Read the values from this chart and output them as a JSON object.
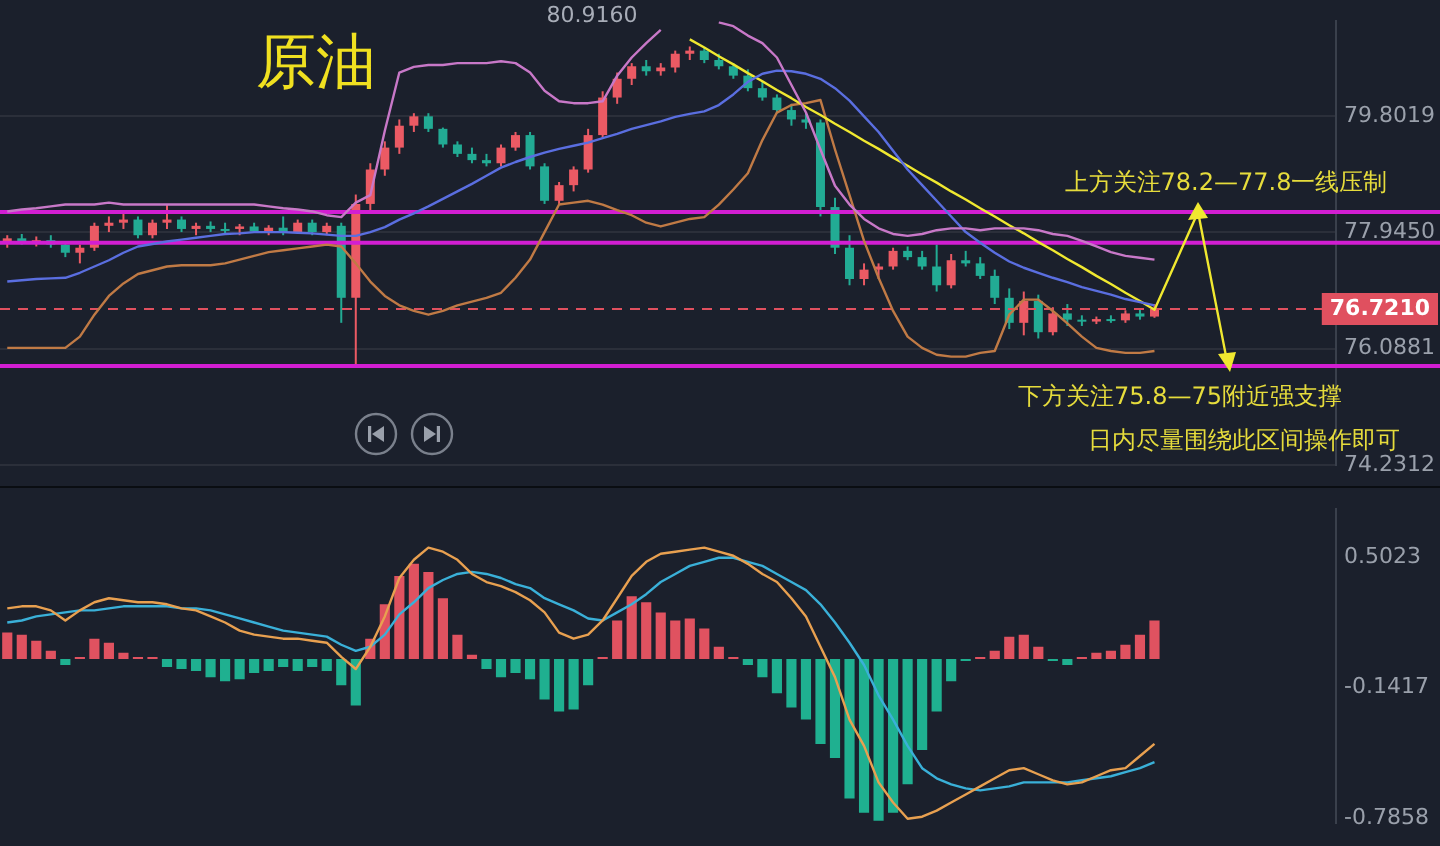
{
  "chart_data": [
    {
      "type": "candlestick",
      "title": "原油",
      "categories": [
        null,
        null,
        null,
        null,
        null,
        null,
        null,
        null,
        null,
        null,
        null,
        null,
        null,
        null,
        null,
        null,
        null,
        null,
        null,
        null,
        null,
        null,
        null,
        null,
        null,
        null,
        null,
        null,
        null,
        null,
        null,
        null,
        null,
        null,
        null,
        null,
        null,
        null,
        null,
        null,
        null,
        null,
        null,
        null,
        null,
        null,
        null,
        null,
        null,
        null,
        null,
        null,
        null,
        null,
        null,
        null,
        null,
        null,
        null,
        null,
        null,
        null,
        null,
        null,
        null,
        null,
        null,
        null,
        null,
        null,
        null,
        null,
        null,
        null,
        null,
        null,
        null,
        null,
        null,
        null,
        null,
        null,
        null,
        null,
        null,
        null,
        null,
        null,
        null,
        null,
        null,
        null
      ],
      "ohlc": [
        [
          77.8,
          77.9,
          77.7,
          77.85
        ],
        [
          77.85,
          77.92,
          77.75,
          77.78
        ],
        [
          77.78,
          77.88,
          77.72,
          77.82
        ],
        [
          77.82,
          77.9,
          77.7,
          77.75
        ],
        [
          77.75,
          77.8,
          77.55,
          77.62
        ],
        [
          77.62,
          77.75,
          77.45,
          77.7
        ],
        [
          77.7,
          78.1,
          77.65,
          78.05
        ],
        [
          78.05,
          78.2,
          77.95,
          78.1
        ],
        [
          78.1,
          78.25,
          78.0,
          78.15
        ],
        [
          78.15,
          78.2,
          77.85,
          77.9
        ],
        [
          77.9,
          78.15,
          77.85,
          78.1
        ],
        [
          78.1,
          78.4,
          78.0,
          78.15
        ],
        [
          78.15,
          78.2,
          77.95,
          78.0
        ],
        [
          78.0,
          78.1,
          77.9,
          78.05
        ],
        [
          78.05,
          78.12,
          77.95,
          78.0
        ],
        [
          78.0,
          78.1,
          77.92,
          77.98
        ],
        [
          78.0,
          78.08,
          77.9,
          78.04
        ],
        [
          78.04,
          78.1,
          77.95,
          77.96
        ],
        [
          77.96,
          78.06,
          77.9,
          78.02
        ],
        [
          78.02,
          78.2,
          77.9,
          77.95
        ],
        [
          77.95,
          78.15,
          77.92,
          78.1
        ],
        [
          78.1,
          78.15,
          77.9,
          77.95
        ],
        [
          77.95,
          78.1,
          77.9,
          78.05
        ],
        [
          78.05,
          78.1,
          76.5,
          76.9
        ],
        [
          76.9,
          78.55,
          75.84,
          78.4
        ],
        [
          78.4,
          79.05,
          78.3,
          78.95
        ],
        [
          78.95,
          79.4,
          78.85,
          79.3
        ],
        [
          79.3,
          79.75,
          79.2,
          79.65
        ],
        [
          79.65,
          79.85,
          79.55,
          79.8
        ],
        [
          79.8,
          79.85,
          79.55,
          79.6
        ],
        [
          79.6,
          79.62,
          79.3,
          79.35
        ],
        [
          79.35,
          79.4,
          79.15,
          79.2
        ],
        [
          79.2,
          79.3,
          79.05,
          79.1
        ],
        [
          79.1,
          79.2,
          79.0,
          79.05
        ],
        [
          79.05,
          79.35,
          79.0,
          79.3
        ],
        [
          79.3,
          79.55,
          79.25,
          79.5
        ],
        [
          79.5,
          79.55,
          78.95,
          79.0
        ],
        [
          79.0,
          79.05,
          78.4,
          78.45
        ],
        [
          78.45,
          78.75,
          78.4,
          78.7
        ],
        [
          78.7,
          79.0,
          78.6,
          78.95
        ],
        [
          78.95,
          79.6,
          78.9,
          79.5
        ],
        [
          79.5,
          80.2,
          79.45,
          80.1
        ],
        [
          80.1,
          80.5,
          80.0,
          80.4
        ],
        [
          80.4,
          80.65,
          80.3,
          80.6
        ],
        [
          80.6,
          80.7,
          80.45,
          80.52
        ],
        [
          80.52,
          80.65,
          80.45,
          80.58
        ],
        [
          80.58,
          80.85,
          80.5,
          80.8
        ],
        [
          80.8,
          80.916,
          80.7,
          80.85
        ],
        [
          80.85,
          80.9,
          80.65,
          80.7
        ],
        [
          80.7,
          80.8,
          80.55,
          80.6
        ],
        [
          80.6,
          80.65,
          80.4,
          80.45
        ],
        [
          80.45,
          80.55,
          80.2,
          80.25
        ],
        [
          80.25,
          80.35,
          80.05,
          80.1
        ],
        [
          80.1,
          80.15,
          79.85,
          79.9
        ],
        [
          79.9,
          80.0,
          79.65,
          79.75
        ],
        [
          79.75,
          79.85,
          79.6,
          79.7
        ],
        [
          79.7,
          79.75,
          78.2,
          78.35
        ],
        [
          78.35,
          78.5,
          77.6,
          77.7
        ],
        [
          77.7,
          77.9,
          77.1,
          77.2
        ],
        [
          77.2,
          77.45,
          77.1,
          77.35
        ],
        [
          77.35,
          77.45,
          77.2,
          77.4
        ],
        [
          77.4,
          77.7,
          77.35,
          77.65
        ],
        [
          77.65,
          77.72,
          77.5,
          77.55
        ],
        [
          77.55,
          77.65,
          77.35,
          77.4
        ],
        [
          77.4,
          77.75,
          77.0,
          77.1
        ],
        [
          77.1,
          77.6,
          77.05,
          77.5
        ],
        [
          77.5,
          77.65,
          77.4,
          77.45
        ],
        [
          77.45,
          77.55,
          77.2,
          77.25
        ],
        [
          77.25,
          77.35,
          76.8,
          76.9
        ],
        [
          76.9,
          77.05,
          76.4,
          76.5
        ],
        [
          76.5,
          77.0,
          76.3,
          76.85
        ],
        [
          76.85,
          76.95,
          76.25,
          76.35
        ],
        [
          76.35,
          76.75,
          76.3,
          76.65
        ],
        [
          76.65,
          76.8,
          76.45,
          76.55
        ],
        [
          76.55,
          76.62,
          76.45,
          76.52
        ],
        [
          76.52,
          76.6,
          76.48,
          76.56
        ],
        [
          76.56,
          76.62,
          76.5,
          76.54
        ],
        [
          76.54,
          76.7,
          76.5,
          76.65
        ],
        [
          76.65,
          76.72,
          76.55,
          76.6
        ],
        [
          76.6,
          76.8,
          76.58,
          76.721
        ],
        null,
        null,
        null,
        null,
        null,
        null,
        null,
        null,
        null,
        null,
        null,
        null
      ],
      "colors": [
        "#eb5a64",
        "#22ab94",
        "#eb5a64",
        "#22ab94",
        "#22ab94",
        "#eb5a64",
        "#eb5a64",
        "#eb5a64",
        "#eb5a64",
        "#22ab94",
        "#eb5a64",
        "#eb5a64",
        "#22ab94",
        "#eb5a64",
        "#22ab94",
        "#22ab94",
        "#eb5a64",
        "#22ab94",
        "#eb5a64",
        "#22ab94",
        "#eb5a64",
        "#22ab94",
        "#eb5a64",
        "#22ab94",
        "#eb5a64",
        "#eb5a64",
        "#eb5a64",
        "#eb5a64",
        "#eb5a64",
        "#22ab94",
        "#22ab94",
        "#22ab94",
        "#22ab94",
        "#22ab94",
        "#eb5a64",
        "#eb5a64",
        "#22ab94",
        "#22ab94",
        "#eb5a64",
        "#eb5a64",
        "#eb5a64",
        "#eb5a64",
        "#eb5a64",
        "#eb5a64",
        "#22ab94",
        "#eb5a64",
        "#eb5a64",
        "#eb5a64",
        "#22ab94",
        "#22ab94",
        "#22ab94",
        "#22ab94",
        "#22ab94",
        "#22ab94",
        "#22ab94",
        "#22ab94",
        "#22ab94",
        "#22ab94",
        "#22ab94",
        "#eb5a64",
        "#eb5a64",
        "#eb5a64",
        "#22ab94",
        "#22ab94",
        "#22ab94",
        "#eb5a64",
        "#22ab94",
        "#22ab94",
        "#22ab94",
        "#22ab94",
        "#eb5a64",
        "#22ab94",
        "#eb5a64",
        "#22ab94",
        "#22ab94",
        "#eb5a64",
        "#22ab94",
        "#eb5a64",
        "#22ab94",
        "#eb5a64",
        null,
        null,
        null,
        null,
        null,
        null,
        null,
        null,
        null,
        null,
        null,
        null
      ],
      "series": [
        {
          "type": "line",
          "color": "#c878c8",
          "values": [
            78.28,
            78.31,
            78.33,
            78.36,
            78.39,
            78.39,
            78.39,
            78.42,
            78.39,
            78.39,
            78.39,
            78.39,
            78.39,
            78.39,
            78.39,
            78.39,
            78.39,
            78.39,
            78.36,
            78.33,
            78.31,
            78.28,
            78.22,
            78.19,
            78.42,
            78.54,
            79.57,
            80.5,
            80.59,
            80.62,
            80.62,
            80.65,
            80.65,
            80.65,
            80.68,
            80.65,
            80.5,
            80.21,
            80.04,
            80.01,
            80.01,
            80.04,
            80.45,
            80.74,
            80.97,
            81.18,
            null,
            null,
            null,
            81.3,
            81.24,
            81.09,
            80.97,
            80.74,
            80.3,
            79.86,
            79.27,
            78.69,
            78.39,
            78.16,
            78.01,
            77.92,
            77.89,
            77.92,
            77.98,
            78.01,
            78.01,
            77.98,
            78.01,
            78.01,
            78.01,
            77.98,
            77.92,
            77.89,
            77.81,
            77.72,
            77.63,
            77.57,
            77.54,
            77.51,
            null,
            null,
            null,
            null,
            null,
            null,
            null,
            null,
            null,
            null,
            null,
            null
          ]
        },
        {
          "type": "line",
          "color": "#5a6ee0",
          "values": [
            77.16,
            77.18,
            77.2,
            77.21,
            77.22,
            77.3,
            77.4,
            77.5,
            77.62,
            77.72,
            77.76,
            77.8,
            77.83,
            77.86,
            77.89,
            77.92,
            77.93,
            77.95,
            77.95,
            77.95,
            77.94,
            77.93,
            77.91,
            77.89,
            77.89,
            77.95,
            78.03,
            78.15,
            78.25,
            78.36,
            78.48,
            78.6,
            78.72,
            78.85,
            78.98,
            79.07,
            79.15,
            79.22,
            79.28,
            79.33,
            79.38,
            79.45,
            79.52,
            79.6,
            79.66,
            79.72,
            79.79,
            79.84,
            79.88,
            79.98,
            80.15,
            80.35,
            80.48,
            80.53,
            80.52,
            80.48,
            80.4,
            80.25,
            80.05,
            79.8,
            79.55,
            79.25,
            78.95,
            78.7,
            78.45,
            78.2,
            77.95,
            77.78,
            77.62,
            77.48,
            77.38,
            77.3,
            77.22,
            77.15,
            77.07,
            77.01,
            76.95,
            76.88,
            76.83,
            76.78,
            null,
            null,
            null,
            null,
            null,
            null,
            null,
            null,
            null,
            null,
            null,
            null
          ]
        },
        {
          "type": "line",
          "color": "#f0e830",
          "values": [
            null,
            null,
            null,
            null,
            null,
            null,
            null,
            null,
            null,
            null,
            null,
            null,
            null,
            null,
            null,
            null,
            null,
            null,
            null,
            null,
            null,
            null,
            null,
            null,
            null,
            null,
            null,
            null,
            null,
            null,
            null,
            null,
            null,
            null,
            null,
            null,
            null,
            null,
            null,
            null,
            null,
            null,
            null,
            null,
            null,
            null,
            null,
            81.03,
            80.9,
            80.76,
            80.63,
            80.49,
            80.36,
            80.22,
            80.09,
            79.95,
            79.82,
            79.68,
            79.55,
            79.41,
            79.28,
            79.14,
            79.01,
            78.87,
            78.74,
            78.6,
            78.47,
            78.33,
            78.2,
            78.06,
            77.93,
            77.79,
            77.66,
            77.52,
            77.39,
            77.25,
            77.12,
            76.98,
            76.85,
            76.71,
            null,
            null,
            78.27,
            null,
            75.88,
            null,
            null,
            null,
            null,
            null,
            null,
            null
          ]
        },
        {
          "type": "line",
          "color": "#c07a45",
          "values": [
            76.1,
            76.1,
            76.1,
            76.1,
            76.1,
            76.28,
            76.63,
            76.93,
            77.13,
            77.28,
            77.34,
            77.4,
            77.42,
            77.42,
            77.42,
            77.45,
            77.51,
            77.57,
            77.63,
            77.66,
            77.69,
            77.72,
            77.75,
            77.72,
            77.45,
            77.16,
            76.93,
            76.78,
            76.69,
            76.63,
            76.69,
            76.78,
            76.84,
            76.9,
            76.98,
            77.22,
            77.51,
            77.95,
            78.39,
            78.42,
            78.45,
            78.39,
            78.3,
            78.22,
            78.1,
            78.04,
            78.1,
            78.16,
            78.19,
            78.39,
            78.63,
            78.89,
            79.42,
            79.86,
            79.98,
            80.01,
            80.06,
            79.27,
            78.54,
            77.81,
            77.22,
            76.69,
            76.28,
            76.1,
            75.99,
            75.96,
            75.96,
            76.02,
            76.05,
            76.63,
            76.87,
            76.87,
            76.69,
            76.49,
            76.28,
            76.1,
            76.05,
            76.02,
            76.02,
            76.05,
            null,
            null,
            null,
            null,
            null,
            null,
            null,
            null,
            null,
            null,
            null,
            null
          ]
        }
      ],
      "ylim": [
        74.2312,
        81.32
      ],
      "yticks": [
        79.8019,
        {
          "value": 77.945,
          "label": "77.9450"
        },
        76.0881,
        74.2312
      ],
      "tick_labels": "y",
      "grid": "y",
      "marker": "none",
      "ref_lines": [
        {
          "axis": "y",
          "value": 78.27,
          "color": "#d21ed2"
        },
        {
          "axis": "y",
          "value": 77.78,
          "color": "#d21ed2"
        },
        {
          "axis": "y",
          "value": 75.81,
          "color": "#d21ed2"
        },
        {
          "axis": "y",
          "value": 76.721,
          "label": "76.7210",
          "color": "#e0505f",
          "line_style": "dashed"
        }
      ],
      "annotations": [
        "80.9160",
        "上方关注78.2—77.8一线压制",
        "下方关注75.8—75附近强支撑",
        "日内尽量围绕此区间操作即可"
      ]
    },
    {
      "type": "bar",
      "categories": [
        null,
        null,
        null,
        null,
        null,
        null,
        null,
        null,
        null,
        null,
        null,
        null,
        null,
        null,
        null,
        null,
        null,
        null,
        null,
        null,
        null,
        null,
        null,
        null,
        null,
        null,
        null,
        null,
        null,
        null,
        null,
        null,
        null,
        null,
        null,
        null,
        null,
        null,
        null,
        null,
        null,
        null,
        null,
        null,
        null,
        null,
        null,
        null,
        null,
        null,
        null,
        null,
        null,
        null,
        null,
        null,
        null,
        null,
        null,
        null,
        null,
        null,
        null,
        null,
        null,
        null,
        null,
        null,
        null,
        null,
        null,
        null,
        null,
        null,
        null,
        null,
        null,
        null,
        null,
        null,
        null,
        null,
        null,
        null,
        null,
        null,
        null,
        null,
        null,
        null,
        null,
        null
      ],
      "series": [
        {
          "type": "bar",
          "values": [
            0.13,
            0.12,
            0.09,
            0.04,
            -0.03,
            0.01,
            0.1,
            0.08,
            0.03,
            0.01,
            0.01,
            -0.04,
            -0.05,
            -0.06,
            -0.09,
            -0.11,
            -0.1,
            -0.07,
            -0.06,
            -0.04,
            -0.06,
            -0.04,
            -0.06,
            -0.13,
            -0.23,
            0.1,
            0.27,
            0.41,
            0.47,
            0.43,
            0.3,
            0.12,
            0.02,
            -0.05,
            -0.09,
            -0.07,
            -0.1,
            -0.2,
            -0.26,
            -0.25,
            -0.13,
            0.01,
            0.19,
            0.31,
            0.28,
            0.23,
            0.19,
            0.2,
            0.15,
            0.06,
            0.01,
            -0.03,
            -0.09,
            -0.17,
            -0.24,
            -0.3,
            -0.42,
            -0.49,
            -0.69,
            -0.76,
            -0.8,
            -0.76,
            -0.62,
            -0.45,
            -0.26,
            -0.11,
            -0.01,
            0.01,
            0.04,
            0.11,
            0.12,
            0.06,
            -0.01,
            -0.03,
            0.01,
            0.03,
            0.04,
            0.07,
            0.12,
            0.19,
            null,
            null,
            null,
            null,
            null,
            null,
            null,
            null,
            null,
            null,
            null,
            null
          ],
          "colors": [
            "#e05260",
            "#e05260",
            "#e05260",
            "#e05260",
            "#1fb090",
            "#e05260",
            "#e05260",
            "#e05260",
            "#e05260",
            "#e05260",
            "#e05260",
            "#1fb090",
            "#1fb090",
            "#1fb090",
            "#1fb090",
            "#1fb090",
            "#1fb090",
            "#1fb090",
            "#1fb090",
            "#1fb090",
            "#1fb090",
            "#1fb090",
            "#1fb090",
            "#1fb090",
            "#1fb090",
            "#e05260",
            "#e05260",
            "#e05260",
            "#e05260",
            "#e05260",
            "#e05260",
            "#e05260",
            "#e05260",
            "#1fb090",
            "#1fb090",
            "#1fb090",
            "#1fb090",
            "#1fb090",
            "#1fb090",
            "#1fb090",
            "#1fb090",
            "#e05260",
            "#e05260",
            "#e05260",
            "#e05260",
            "#e05260",
            "#e05260",
            "#e05260",
            "#e05260",
            "#e05260",
            "#e05260",
            "#1fb090",
            "#1fb090",
            "#1fb090",
            "#1fb090",
            "#1fb090",
            "#1fb090",
            "#1fb090",
            "#1fb090",
            "#1fb090",
            "#1fb090",
            "#1fb090",
            "#1fb090",
            "#1fb090",
            "#1fb090",
            "#1fb090",
            "#1fb090",
            "#e05260",
            "#e05260",
            "#e05260",
            "#e05260",
            "#e05260",
            "#1fb090",
            "#1fb090",
            "#e05260",
            "#e05260",
            "#e05260",
            "#e05260",
            "#e05260",
            "#e05260",
            null,
            null,
            null,
            null,
            null,
            null,
            null,
            null,
            null,
            null,
            null,
            null
          ]
        },
        {
          "type": "line",
          "color": "#e8a050",
          "values": [
            0.25,
            0.26,
            0.26,
            0.24,
            0.19,
            0.24,
            0.28,
            0.3,
            0.29,
            0.28,
            0.28,
            0.27,
            0.25,
            0.24,
            0.21,
            0.18,
            0.14,
            0.12,
            0.11,
            0.1,
            0.1,
            0.09,
            0.08,
            0.01,
            -0.05,
            0.06,
            0.21,
            0.4,
            0.49,
            0.55,
            0.53,
            0.49,
            0.42,
            0.38,
            0.36,
            0.33,
            0.29,
            0.23,
            0.13,
            0.1,
            0.12,
            0.19,
            0.3,
            0.41,
            0.48,
            0.52,
            0.53,
            0.54,
            0.55,
            0.53,
            0.51,
            0.47,
            0.42,
            0.38,
            0.3,
            0.21,
            0.06,
            -0.09,
            -0.3,
            -0.43,
            -0.61,
            -0.71,
            -0.79,
            -0.78,
            -0.75,
            -0.71,
            -0.67,
            -0.63,
            -0.59,
            -0.55,
            -0.54,
            -0.57,
            -0.6,
            -0.62,
            -0.61,
            -0.58,
            -0.55,
            -0.54,
            -0.48,
            -0.42,
            null,
            null,
            null,
            null,
            null,
            null,
            null,
            null,
            null,
            null,
            null,
            null
          ]
        },
        {
          "type": "line",
          "color": "#3ab0d8",
          "values": [
            0.18,
            0.19,
            0.21,
            0.22,
            0.23,
            0.24,
            0.24,
            0.25,
            0.26,
            0.26,
            0.26,
            0.26,
            0.25,
            0.25,
            0.24,
            0.22,
            0.2,
            0.18,
            0.16,
            0.14,
            0.13,
            0.12,
            0.11,
            0.07,
            0.04,
            0.06,
            0.12,
            0.22,
            0.28,
            0.35,
            0.39,
            0.42,
            0.43,
            0.42,
            0.4,
            0.37,
            0.35,
            0.3,
            0.27,
            0.24,
            0.2,
            0.19,
            0.23,
            0.27,
            0.32,
            0.38,
            0.42,
            0.46,
            0.48,
            0.5,
            0.5,
            0.48,
            0.46,
            0.42,
            0.38,
            0.34,
            0.27,
            0.18,
            0.08,
            -0.03,
            -0.18,
            -0.3,
            -0.43,
            -0.54,
            -0.59,
            -0.62,
            -0.64,
            -0.65,
            -0.64,
            -0.63,
            -0.61,
            -0.61,
            -0.61,
            -0.61,
            -0.6,
            -0.59,
            -0.58,
            -0.56,
            -0.54,
            -0.51,
            null,
            null,
            null,
            null,
            null,
            null,
            null,
            null,
            null,
            null,
            null,
            null
          ]
        }
      ],
      "ylim": [
        -0.81,
        0.74
      ],
      "yticks": [
        0.5023,
        -0.1417,
        -0.7858
      ],
      "tick_labels": "y",
      "marker": "none"
    }
  ]
}
